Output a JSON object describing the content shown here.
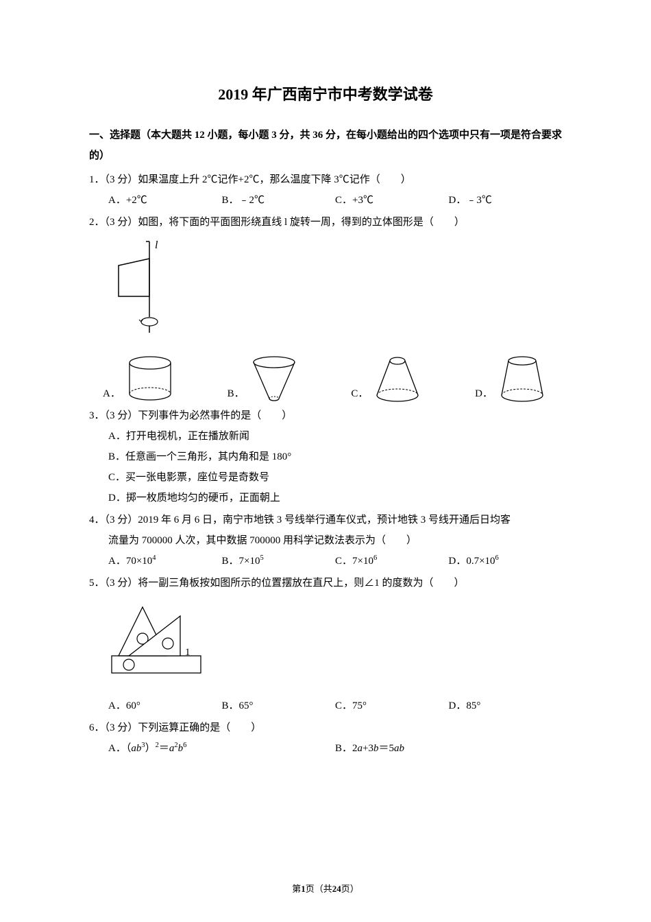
{
  "title": "2019 年广西南宁市中考数学试卷",
  "section_heading": "一、选择题（本大题共 12 小题，每小题 3 分，共 36 分，在每小题给出的四个选项中只有一项是符合要求的）",
  "q1": {
    "text": "1．（3 分）如果温度上升 2℃记作+2℃，那么温度下降 3℃记作（　　）",
    "a": "A．+2℃",
    "b": "B．﹣2℃",
    "c": "C．+3℃",
    "d": "D．﹣3℃"
  },
  "q2": {
    "text": "2．（3 分）如图，将下面的平面图形绕直线 l 旋转一周，得到的立体图形是（　　）",
    "a": "A．",
    "b": "B．",
    "c": "C．",
    "d": "D．",
    "l_label": "l"
  },
  "q3": {
    "text": "3．（3 分）下列事件为必然事件的是（　　）",
    "a": "A．打开电视机，正在播放新闻",
    "b": "B．任意画一个三角形，其内角和是 180°",
    "c": "C．买一张电影票，座位号是奇数号",
    "d": "D．掷一枚质地均匀的硬币，正面朝上"
  },
  "q4": {
    "line1": "4．（3 分）2019 年 6 月 6 日，南宁市地铁 3 号线举行通车仪式，预计地铁 3 号线开通后日均客",
    "line2": "流量为 700000 人次，其中数据 700000 用科学记数法表示为（　　）",
    "a_pre": "A．70×10",
    "a_sup": "4",
    "b_pre": "B．7×10",
    "b_sup": "5",
    "c_pre": "C．7×10",
    "c_sup": "6",
    "d_pre": "D．0.7×10",
    "d_sup": "6"
  },
  "q5": {
    "text": "5．（3 分）将一副三角板按如图所示的位置摆放在直尺上，则∠1 的度数为（　　）",
    "a": "A．60°",
    "b": "B．65°",
    "c": "C．75°",
    "d": "D．85°",
    "angle_label": "1"
  },
  "q6": {
    "text": "6．（3 分）下列运算正确的是（　　）",
    "a_html": "A．（<span class='italic'>ab</span><sup>3</sup>）<sup>2</sup>＝<span class='italic'>a</span><sup>2</sup><span class='italic'>b</span><sup>6</sup>",
    "b_html": "B．2<span class='italic'>a</span>+3<span class='italic'>b</span>＝5<span class='italic'>ab</span>"
  },
  "footer": {
    "pre": "第",
    "page": "1",
    "mid": "页（共",
    "total": "24",
    "post": "页）"
  },
  "colors": {
    "text": "#000000",
    "bg": "#ffffff",
    "stroke": "#000000"
  }
}
